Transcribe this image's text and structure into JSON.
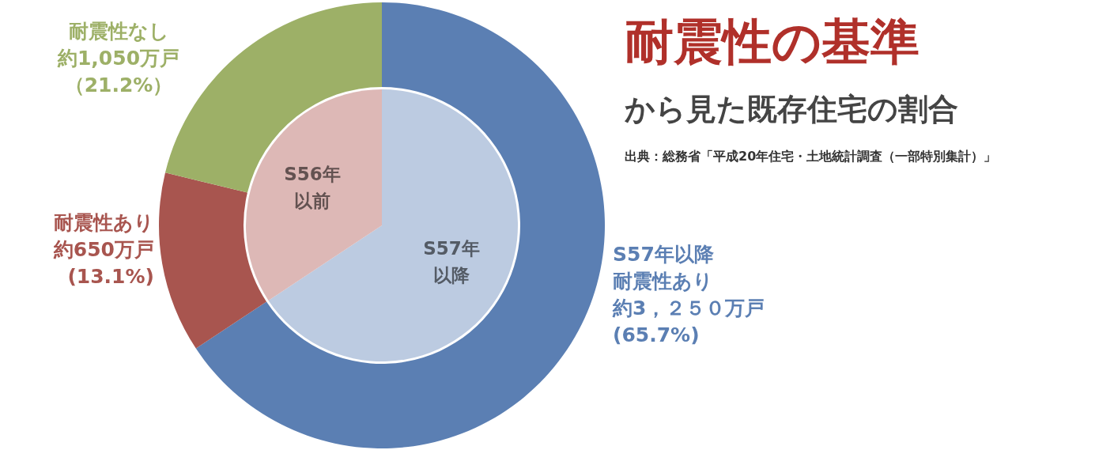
{
  "chart_data": {
    "type": "donut",
    "title": "耐震性の基準",
    "subtitle": "から見た既存住宅の割合",
    "annotations": [
      "出典：総務省「平成20年住宅・土地統計調査（一部特別集計）」"
    ],
    "categories": [
      "S57年以降耐震性あり",
      "耐震性あり",
      "耐震性なし"
    ],
    "series": [
      {
        "values": [
          65.7,
          13.1,
          21.2
        ],
        "colors": [
          "#5b7fb3",
          "#a8554f",
          "#9db067"
        ],
        "value_labels": [
          "約3，２５０万戸(65.7%)",
          "約650万戸(13.1%)",
          "約1,050万戸（21.2%）"
        ]
      },
      {
        "type": "pie",
        "values": [
          65.7,
          34.3,
          null
        ],
        "colors": [
          "#bccbe1",
          "#ddb8b6",
          null
        ],
        "value_labels": [
          "S57年以降",
          "S56年以前",
          null
        ]
      }
    ]
  }
}
